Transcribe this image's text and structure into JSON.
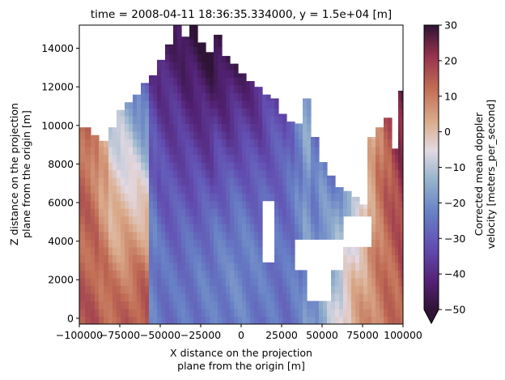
{
  "chart_data": {
    "type": "heatmap",
    "title": "time = 2008-04-11 18:36:35.334000, y = 1.5e+04 [m]",
    "xlabel": [
      "X distance on the projection",
      "plane from the origin [m]"
    ],
    "ylabel": [
      "Z distance on the projection",
      "plane from the origin [m]"
    ],
    "xlim": [
      -100000,
      100000
    ],
    "ylim": [
      -300,
      15200
    ],
    "x_ticks": [
      -100000,
      -75000,
      -50000,
      -25000,
      0,
      25000,
      50000,
      75000,
      100000
    ],
    "x_tick_labels": [
      "−100000",
      "−75000",
      "−50000",
      "−25000",
      "0",
      "25000",
      "50000",
      "75000",
      "100000"
    ],
    "y_ticks": [
      0,
      2000,
      4000,
      6000,
      8000,
      10000,
      12000,
      14000
    ],
    "y_tick_labels": [
      "0",
      "2000",
      "4000",
      "6000",
      "8000",
      "10000",
      "12000",
      "14000"
    ],
    "colorbar": {
      "label": [
        "Corrected mean doppler",
        "velocity [meters_per_second]"
      ],
      "min": -50,
      "max": 30,
      "ticks": [
        -50,
        -40,
        -30,
        -20,
        -10,
        0,
        10,
        20,
        30
      ],
      "tick_labels": [
        "−50",
        "−40",
        "−30",
        "−20",
        "−10",
        "0",
        "10",
        "20",
        "30"
      ],
      "extend": "min",
      "colormap": "twilight_shifted"
    },
    "field": {
      "description_units": "velocity in m/s by x (m) and z (m)",
      "columns": [
        {
          "x0": -100000,
          "x1": -93000,
          "zmax": 9900,
          "v_top": 12,
          "v_bottom": 14
        },
        {
          "x0": -93000,
          "x1": -88000,
          "zmax": 9500,
          "v_top": 8,
          "v_bottom": 15
        },
        {
          "x0": -88000,
          "x1": -82000,
          "zmax": 9200,
          "v_top": 2,
          "v_bottom": 12
        },
        {
          "x0": -82000,
          "x1": -77000,
          "zmax": 9900,
          "v_top": -8,
          "v_bottom": 10
        },
        {
          "x0": -77000,
          "x1": -72000,
          "zmax": 10800,
          "v_top": -12,
          "v_bottom": 10
        },
        {
          "x0": -72000,
          "x1": -67000,
          "zmax": 11200,
          "v_top": -16,
          "v_bottom": 12
        },
        {
          "x0": -67000,
          "x1": -62000,
          "zmax": 11600,
          "v_top": -22,
          "v_bottom": 14
        },
        {
          "x0": -62000,
          "x1": -57000,
          "zmax": 12200,
          "v_top": -30,
          "v_bottom": 16
        },
        {
          "x0": -57000,
          "x1": -52000,
          "zmax": 12600,
          "v_top": -38,
          "v_bottom": -18
        },
        {
          "x0": -52000,
          "x1": -47000,
          "zmax": 13400,
          "v_top": -42,
          "v_bottom": -22
        },
        {
          "x0": -47000,
          "x1": -42000,
          "zmax": 14200,
          "v_top": -44,
          "v_bottom": -24
        },
        {
          "x0": -42000,
          "x1": -37000,
          "zmax": 15200,
          "v_top": -46,
          "v_bottom": -24
        },
        {
          "x0": -37000,
          "x1": -32000,
          "zmax": 14600,
          "v_top": -48,
          "v_bottom": -22
        },
        {
          "x0": -32000,
          "x1": -27000,
          "zmax": 15200,
          "v_top": -50,
          "v_bottom": -22
        },
        {
          "x0": -27000,
          "x1": -22000,
          "zmax": 14300,
          "v_top": -50,
          "v_bottom": -20
        },
        {
          "x0": -22000,
          "x1": -17000,
          "zmax": 13800,
          "v_top": -50,
          "v_bottom": -20
        },
        {
          "x0": -17000,
          "x1": -12000,
          "zmax": 14700,
          "v_top": -50,
          "v_bottom": -18
        },
        {
          "x0": -12000,
          "x1": -7000,
          "zmax": 13600,
          "v_top": -48,
          "v_bottom": -18
        },
        {
          "x0": -7000,
          "x1": -2000,
          "zmax": 13200,
          "v_top": -46,
          "v_bottom": -16
        },
        {
          "x0": -2000,
          "x1": 3000,
          "zmax": 12700,
          "v_top": -44,
          "v_bottom": -16
        },
        {
          "x0": 3000,
          "x1": 8000,
          "zmax": 12300,
          "v_top": -42,
          "v_bottom": -18
        },
        {
          "x0": 8000,
          "x1": 13000,
          "zmax": 12000,
          "v_top": -40,
          "v_bottom": -20
        },
        {
          "x0": 13000,
          "x1": 18000,
          "zmax": 11600,
          "v_top": -36,
          "v_bottom": -22
        },
        {
          "x0": 18000,
          "x1": 23000,
          "zmax": 11400,
          "v_top": -34,
          "v_bottom": -22
        },
        {
          "x0": 23000,
          "x1": 28000,
          "zmax": 10600,
          "v_top": -32,
          "v_bottom": -24
        },
        {
          "x0": 28000,
          "x1": 33000,
          "zmax": 10200,
          "v_top": -28,
          "v_bottom": -24
        },
        {
          "x0": 33000,
          "x1": 38000,
          "zmax": 10100,
          "v_top": -22,
          "v_bottom": -24
        },
        {
          "x0": 38000,
          "x1": 43000,
          "zmax": 11400,
          "v_top": -16,
          "v_bottom": -20
        },
        {
          "x0": 43000,
          "x1": 48000,
          "zmax": 9400,
          "v_top": -26,
          "v_bottom": -18
        },
        {
          "x0": 48000,
          "x1": 53000,
          "zmax": 8100,
          "v_top": -22,
          "v_bottom": -14
        },
        {
          "x0": 53000,
          "x1": 58000,
          "zmax": 7400,
          "v_top": -24,
          "v_bottom": -10
        },
        {
          "x0": 58000,
          "x1": 63000,
          "zmax": 6800,
          "v_top": -20,
          "v_bottom": -6
        },
        {
          "x0": 63000,
          "x1": 68000,
          "zmax": 6600,
          "v_top": -16,
          "v_bottom": 0
        },
        {
          "x0": 68000,
          "x1": 73000,
          "zmax": 6300,
          "v_top": -12,
          "v_bottom": 4
        },
        {
          "x0": 73000,
          "x1": 78000,
          "zmax": 5900,
          "v_top": -4,
          "v_bottom": 6
        },
        {
          "x0": 78000,
          "x1": 83000,
          "zmax": 9400,
          "v_top": 2,
          "v_bottom": 8
        },
        {
          "x0": 83000,
          "x1": 88000,
          "zmax": 9900,
          "v_top": 10,
          "v_bottom": 10
        },
        {
          "x0": 88000,
          "x1": 93000,
          "zmax": 10400,
          "v_top": 16,
          "v_bottom": 12
        },
        {
          "x0": 93000,
          "x1": 97000,
          "zmax": 8800,
          "v_top": 20,
          "v_bottom": 12
        },
        {
          "x0": 97000,
          "x1": 100000,
          "zmax": 11800,
          "v_top": 26,
          "v_bottom": 14
        }
      ],
      "gaps": [
        {
          "x0": 12000,
          "x1": 21000,
          "z0": 3000,
          "z1": 6000
        },
        {
          "x0": 33000,
          "x1": 62000,
          "z0": 2600,
          "z1": 4100
        },
        {
          "x0": 40000,
          "x1": 56000,
          "z0": 1000,
          "z1": 2600
        },
        {
          "x0": 64000,
          "x1": 80000,
          "z0": 3600,
          "z1": 5200
        }
      ],
      "blue_core": {
        "x0": -57000,
        "x1": 30000,
        "z0": 0,
        "z1": 5500,
        "v": -26
      },
      "warm_left_core": {
        "x0": -100000,
        "x1": -60000,
        "z0": 0,
        "z1": 3800,
        "v": 16
      }
    }
  }
}
